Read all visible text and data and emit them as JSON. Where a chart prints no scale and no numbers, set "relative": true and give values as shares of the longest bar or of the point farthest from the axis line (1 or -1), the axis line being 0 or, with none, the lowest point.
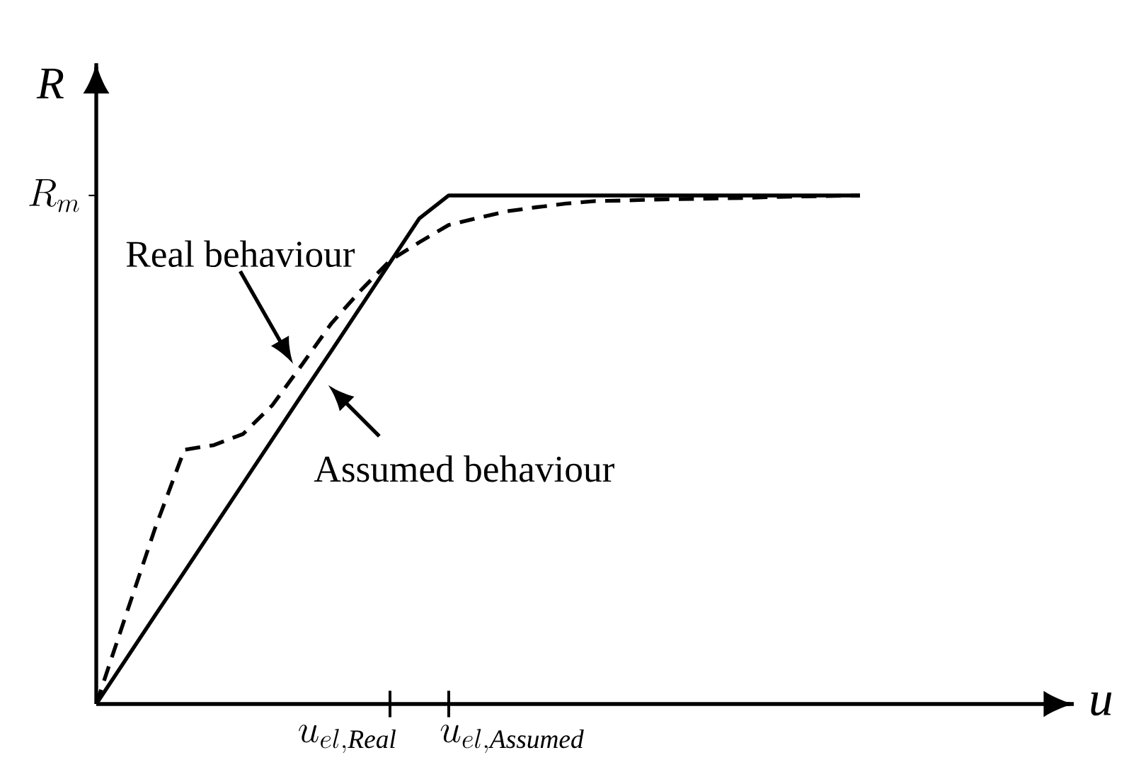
{
  "chart_data": {
    "type": "line",
    "xlabel": "u",
    "ylabel": "R",
    "relative": true,
    "categories": [
      null,
      null,
      null,
      null,
      null,
      null,
      null,
      null,
      null,
      null,
      null,
      null,
      null,
      null,
      null,
      null,
      null,
      null,
      null,
      null,
      null,
      null,
      null,
      null,
      null,
      null,
      null
    ],
    "series": [
      {
        "color": "#000000",
        "line_style": "solid",
        "values": [
          0,
          0.087,
          0.174,
          0.26,
          0.347,
          0.434,
          0.521,
          0.608,
          0.694,
          0.781,
          0.868,
          0.955,
          1,
          1,
          1,
          1,
          1,
          1,
          1,
          1,
          1,
          1,
          1,
          1,
          1,
          1,
          1
        ]
      },
      {
        "color": "#000000",
        "line_style": "dashed",
        "values": [
          0,
          0.173,
          0.345,
          0.5,
          0.509,
          0.531,
          0.588,
          0.667,
          0.748,
          0.813,
          0.872,
          0.908,
          0.942,
          0.956,
          0.969,
          0.977,
          0.984,
          0.989,
          0.99,
          0.992,
          0.993,
          0.994,
          0.995,
          0.997,
          0.998,
          0.999,
          1
        ]
      }
    ],
    "marker": "none",
    "annotations": [
      "Real behaviour",
      "Assumed behaviour",
      "R_{m}",
      "u_{el,\\mathit{Real}}",
      "u_{el,\\mathit{Assumed}}"
    ]
  }
}
